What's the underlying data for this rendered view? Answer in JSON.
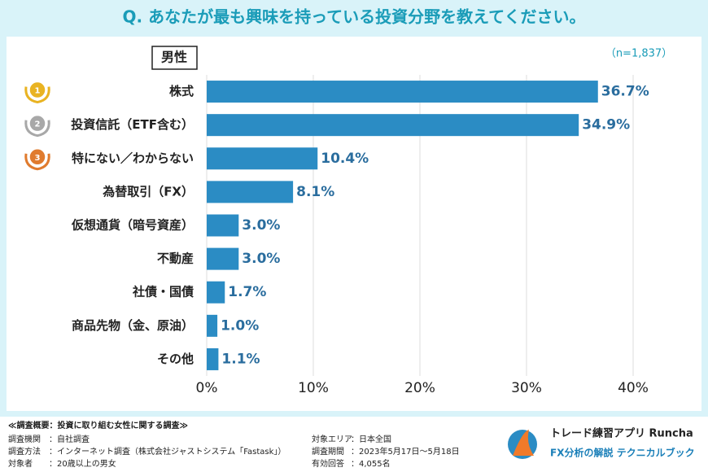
{
  "chart_data": {
    "type": "bar",
    "orientation": "horizontal",
    "title": "Q. あなたが最も興味を持っている投資分野を教えてください。",
    "subtitle": "男性",
    "note": "（n=1,837）",
    "categories": [
      "株式",
      "投資信託（ETF含む）",
      "特にない／わからない",
      "為替取引（FX）",
      "仮想通貨（暗号資産）",
      "不動産",
      "社債・国債",
      "商品先物（金、原油）",
      "その他"
    ],
    "values": [
      36.7,
      34.9,
      10.4,
      8.1,
      3.0,
      3.0,
      1.7,
      1.0,
      1.1
    ],
    "value_labels": [
      "36.7%",
      "34.9%",
      "10.4%",
      "8.1%",
      "3.0%",
      "3.0%",
      "1.7%",
      "1.0%",
      "1.1%"
    ],
    "ranks": [
      1,
      2,
      3
    ],
    "color": "#2b8cc4",
    "xlim": [
      0,
      40
    ],
    "xticks": [
      {
        "value": 0,
        "label": "0%"
      },
      {
        "value": 10,
        "label": "10%"
      },
      {
        "value": 20,
        "label": "20%"
      },
      {
        "value": 30,
        "label": "30%"
      },
      {
        "value": 40,
        "label": "40%"
      }
    ],
    "grid": true
  },
  "footer": {
    "heading": "≪調査概要：投資に取り組む女性に関する調査≫",
    "items": [
      {
        "label": "調査機関",
        "value": "：自社調査"
      },
      {
        "label": "調査方法",
        "value": "：インターネット調査（株式会社ジャストシステム「Fastask」）"
      },
      {
        "label": "対象者",
        "value": "：20歳以上の男女"
      },
      {
        "label": "対象エリア",
        "value": "：日本全国"
      },
      {
        "label": "調査期間",
        "value": "：2023年5月17日〜5月18日"
      },
      {
        "label": "有効回答",
        "value": "：4,055名"
      }
    ],
    "brand": "トレード練習アプリ Runcha",
    "tagline": "FX分析の解説 テクニカルブック"
  }
}
